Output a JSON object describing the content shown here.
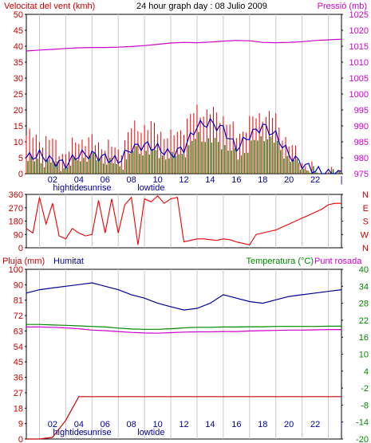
{
  "header": {
    "left_title": "Velocitat del vent (kmh)",
    "center_title": "24 hour graph day : 08 Julio 2009",
    "right_title": "Pressió (mb)"
  },
  "panel3_header": {
    "rain_label": "Pluja (mm)",
    "humidity_label": "Humitat",
    "temp_label": "Temperatura (°C)",
    "dew_label": "Punt rosada"
  },
  "x_ticks": [
    "02",
    "04",
    "06",
    "08",
    "10",
    "12",
    "14",
    "16",
    "18",
    "20",
    "22",
    "|"
  ],
  "events": [
    {
      "label": "hightide",
      "hour": 3.2
    },
    {
      "label": "sunrise",
      "hour": 5.4
    },
    {
      "label": "lowtide",
      "hour": 9.5
    }
  ],
  "colors": {
    "wind": "#ee0000",
    "gust_dark": "#c00000",
    "avg_wind": "#0000cc",
    "green": "#008800",
    "pressure": "#cc00cc",
    "humidity": "#000099",
    "temperature": "#008800",
    "dew": "#cc00cc",
    "rain": "#cc0000",
    "grid": "#c8c8c8"
  },
  "chart_data": [
    {
      "type": "line",
      "name": "wind-pressure",
      "title": "24 hour graph day : 08 Julio 2009",
      "ylabel": "Velocitat del vent (kmh)",
      "y2label": "Pressió (mb)",
      "ylim": [
        0,
        50
      ],
      "y2lim": [
        975,
        1025
      ],
      "y_ticks": [
        "0",
        "5",
        "10",
        "15",
        "20",
        "25",
        "30",
        "35",
        "40",
        "45",
        "50"
      ],
      "y2_ticks": [
        "975",
        "980",
        "985",
        "990",
        "995",
        "1000",
        "1005",
        "1010",
        "1015",
        "1020",
        "1025"
      ],
      "hours": [
        0,
        1,
        2,
        3,
        4,
        5,
        6,
        7,
        8,
        9,
        10,
        11,
        12,
        13,
        14,
        15,
        16,
        17,
        18,
        19,
        20,
        21,
        22,
        23,
        24
      ],
      "series": [
        {
          "values": [
            12,
            11,
            10,
            6,
            11,
            10,
            9,
            7,
            14,
            15,
            14,
            11,
            15,
            20,
            19,
            18,
            12,
            16,
            19,
            17,
            9,
            4,
            0,
            0,
            0
          ]
        },
        {
          "values": [
            5,
            6,
            4,
            3,
            6,
            6,
            5,
            4,
            8,
            9,
            8,
            6,
            8,
            15,
            16,
            14,
            8,
            12,
            15,
            12,
            6,
            3,
            1,
            0,
            0
          ]
        },
        {
          "values": [
            4,
            4,
            3,
            2,
            5,
            5,
            4,
            2,
            7,
            7,
            6,
            5,
            7,
            12,
            10,
            9,
            5,
            9,
            12,
            9,
            4,
            2,
            0,
            0,
            0
          ]
        },
        {
          "values": [
            1013.5,
            1013.8,
            1014,
            1014.3,
            1014.5,
            1014.6,
            1014.6,
            1014.7,
            1014.9,
            1015.2,
            1015.6,
            1016,
            1016.2,
            1016.1,
            1016.3,
            1016.6,
            1016.8,
            1016.7,
            1016.2,
            1016.1,
            1016.2,
            1016.4,
            1016.8,
            1017,
            1017.2
          ]
        }
      ]
    },
    {
      "type": "line",
      "name": "wind-direction",
      "ylim": [
        0,
        360
      ],
      "y_ticks": [
        "0",
        "90",
        "180",
        "270",
        "360"
      ],
      "y2_ticks": [
        "N",
        "W",
        "S",
        "E",
        "N"
      ],
      "hours": [
        0,
        0.5,
        1,
        1.5,
        2,
        2.5,
        3,
        3.5,
        4,
        4.5,
        5,
        5.5,
        6,
        6.5,
        7,
        7.5,
        8,
        8.5,
        9,
        9.5,
        10,
        10.5,
        11,
        11.5,
        12,
        12.5,
        13,
        13.5,
        14,
        14.5,
        15,
        15.5,
        16,
        16.5,
        17,
        17.5,
        18,
        18.5,
        19,
        19.5,
        20,
        20.5,
        21,
        21.5,
        22,
        22.5,
        23,
        23.5,
        24
      ],
      "series": [
        {
          "values": [
            130,
            100,
            340,
            160,
            300,
            80,
            60,
            130,
            100,
            80,
            90,
            320,
            100,
            330,
            100,
            290,
            340,
            20,
            330,
            310,
            350,
            300,
            330,
            340,
            40,
            50,
            60,
            60,
            55,
            50,
            60,
            55,
            40,
            30,
            20,
            90,
            100,
            110,
            120,
            140,
            160,
            180,
            200,
            220,
            240,
            260,
            290,
            300,
            300
          ]
        }
      ]
    },
    {
      "type": "line",
      "name": "rain-humidity-temperature",
      "ylabel": "Pluja (mm)",
      "ylim": [
        0,
        100
      ],
      "y_ticks": [
        "0",
        "9",
        "18",
        "27",
        "36",
        "45",
        "54",
        "63",
        "72",
        "81",
        "90",
        "100"
      ],
      "y2_ticks": [
        "-20",
        "-14",
        "-8",
        "-2",
        "4",
        "10",
        "16",
        "22",
        "28",
        "34",
        "40"
      ],
      "hours": [
        0,
        1,
        2,
        3,
        4,
        5,
        6,
        7,
        8,
        9,
        10,
        11,
        12,
        13,
        14,
        15,
        16,
        17,
        18,
        19,
        20,
        21,
        22,
        23,
        24
      ],
      "series": [
        {
          "name": "Humitat",
          "values": [
            86,
            88,
            89,
            90,
            91,
            92,
            90,
            88,
            85,
            83,
            80,
            78,
            76,
            77,
            80,
            85,
            83,
            81,
            80,
            82,
            84,
            85,
            86,
            87,
            88
          ]
        },
        {
          "name": "Temperatura (°C)",
          "values": [
            20.5,
            20.5,
            20.3,
            20.2,
            20,
            19.8,
            19.6,
            19.2,
            18.9,
            18.8,
            18.8,
            19,
            19.3,
            19.5,
            19.5,
            19.6,
            19.6,
            19.7,
            19.7,
            19.8,
            19.8,
            19.8,
            19.8,
            19.9,
            19.9
          ]
        },
        {
          "name": "Punt rosada",
          "values": [
            19.6,
            19.6,
            19.5,
            19.3,
            19,
            18.5,
            18.3,
            18,
            17.7,
            17.5,
            17.4,
            17.6,
            17.8,
            17.9,
            17.9,
            18,
            18,
            18.2,
            18.3,
            18.4,
            18.5,
            18.5,
            18.6,
            18.7,
            18.7
          ]
        },
        {
          "name": "Pluja (mm)",
          "values": [
            0,
            0,
            1,
            11,
            25,
            25,
            25,
            25,
            25,
            25,
            25,
            25,
            25,
            25,
            25,
            25,
            25,
            25,
            25,
            25,
            25,
            25,
            25,
            25,
            25
          ]
        }
      ]
    }
  ]
}
